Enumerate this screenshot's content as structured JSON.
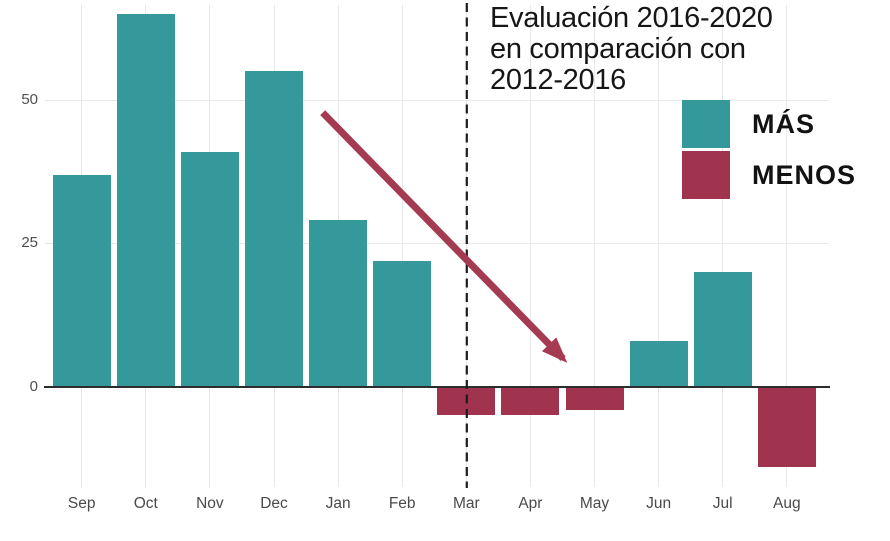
{
  "chart_data": {
    "type": "bar",
    "title_lines": [
      "Evaluación 2016-2020",
      "en comparación con",
      "2012-2016"
    ],
    "categories": [
      "Sep",
      "Oct",
      "Nov",
      "Dec",
      "Jan",
      "Feb",
      "Mar",
      "Apr",
      "May",
      "Jun",
      "Jul",
      "Aug"
    ],
    "values": [
      37,
      65,
      41,
      55,
      29,
      22,
      -5,
      -5,
      -4,
      8,
      20,
      -14
    ],
    "y_ticks": [
      0,
      25,
      50
    ],
    "ylim": [
      -17.5,
      66.5
    ],
    "grid": true,
    "legend_position": "top-right",
    "legend": [
      {
        "label": "MÁS",
        "color": "#35999C"
      },
      {
        "label": "MENOS",
        "color": "#A0344F"
      }
    ],
    "colors": {
      "positive": "#35999C",
      "negative": "#A0344F",
      "arrow": "#A53B52",
      "dashed_line": "#1c1c1c",
      "gridline": "#e8e8e8",
      "axis_line": "#2d2d2d"
    },
    "annotations": {
      "dashed_line_category": "Mar",
      "arrow": {
        "from_index": 3.76,
        "from_value": 47.8,
        "to_index": 7.51,
        "to_value": 4.9
      }
    }
  }
}
